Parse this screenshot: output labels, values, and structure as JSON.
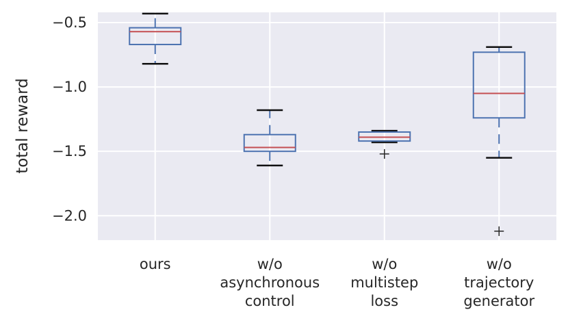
{
  "chart_data": {
    "type": "boxplot",
    "ylabel": "total reward",
    "xlabel": "",
    "title": "",
    "ylim": [
      -2.19,
      -0.42
    ],
    "yticks": [
      -0.5,
      -1.0,
      -1.5,
      -2.0
    ],
    "ytick_labels": [
      "−0.5",
      "−1.0",
      "−1.5",
      "−2.0"
    ],
    "grid": true,
    "categories": [
      [
        "ours"
      ],
      [
        "w/o",
        "asynchronous",
        "control"
      ],
      [
        "w/o",
        "multistep",
        "loss"
      ],
      [
        "w/o",
        "trajectory",
        "generator"
      ]
    ],
    "boxes": [
      {
        "whisker_low": -0.82,
        "q1": -0.67,
        "median": -0.57,
        "q3": -0.54,
        "whisker_high": -0.43,
        "outliers": []
      },
      {
        "whisker_low": -1.61,
        "q1": -1.5,
        "median": -1.47,
        "q3": -1.37,
        "whisker_high": -1.18,
        "outliers": []
      },
      {
        "whisker_low": -1.43,
        "q1": -1.42,
        "median": -1.39,
        "q3": -1.35,
        "whisker_high": -1.34,
        "outliers": [
          -1.52
        ]
      },
      {
        "whisker_low": -1.55,
        "q1": -1.24,
        "median": -1.05,
        "q3": -0.73,
        "whisker_high": -0.69,
        "outliers": [
          -2.12
        ]
      }
    ],
    "colors": {
      "background": "#eaeaf2",
      "grid": "#ffffff",
      "box": "#4c72b0",
      "median": "#c44e52",
      "flier": "#262626"
    }
  }
}
